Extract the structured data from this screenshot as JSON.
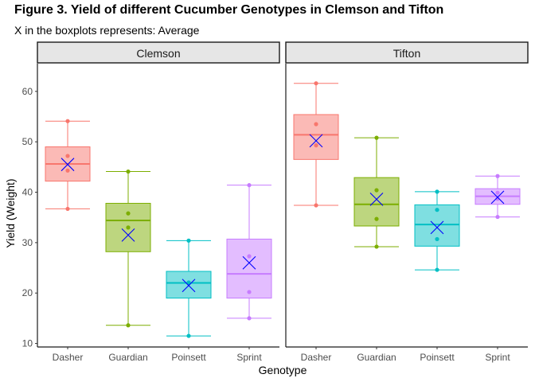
{
  "title": "Figure 3. Yield of different Cucumber Genotypes in Clemson and Tifton",
  "subtitle": "X in the boxplots represents: Average",
  "chart_data": {
    "type": "boxplot",
    "xlabel": "Genotype",
    "ylabel": "Yield (Weight)",
    "ylim": [
      9.3,
      65.5
    ],
    "yticks": [
      10,
      20,
      30,
      40,
      50,
      60
    ],
    "grid": false,
    "legend": "none",
    "categories": [
      "Dasher",
      "Guardian",
      "Poinsett",
      "Sprint"
    ],
    "colors": {
      "Dasher": "#F8766D",
      "Guardian": "#7CAE00",
      "Poinsett": "#00BFC4",
      "Sprint": "#C77CFF"
    },
    "mean_marker_color": "#0000FF",
    "facets": [
      {
        "name": "Clemson",
        "boxes": [
          {
            "category": "Dasher",
            "min": 36.7,
            "q1": 42.2,
            "median": 45.6,
            "q3": 49.0,
            "max": 54.1,
            "mean": 45.5,
            "points": [
              54.1,
              47.2,
              44.3,
              36.7
            ]
          },
          {
            "category": "Guardian",
            "min": 13.6,
            "q1": 28.2,
            "median": 34.4,
            "q3": 37.8,
            "max": 44.1,
            "mean": 31.5,
            "points": [
              44.1,
              35.8,
              33.0,
              13.6
            ]
          },
          {
            "category": "Poinsett",
            "min": 11.5,
            "q1": 19.0,
            "median": 22.0,
            "q3": 24.3,
            "max": 30.4,
            "mean": 21.5,
            "points": [
              30.4,
              22.1,
              21.9,
              11.5
            ]
          },
          {
            "category": "Sprint",
            "min": 15.0,
            "q1": 19.0,
            "median": 23.8,
            "q3": 30.7,
            "max": 41.4,
            "mean": 26.0,
            "points": [
              41.4,
              27.3,
              20.2,
              15.0
            ]
          }
        ]
      },
      {
        "name": "Tifton",
        "boxes": [
          {
            "category": "Dasher",
            "min": 37.4,
            "q1": 46.5,
            "median": 51.4,
            "q3": 55.4,
            "max": 61.6,
            "mean": 50.2,
            "points": [
              61.6,
              53.5,
              49.3,
              37.4
            ]
          },
          {
            "category": "Guardian",
            "min": 29.2,
            "q1": 33.3,
            "median": 37.6,
            "q3": 42.9,
            "max": 50.8,
            "mean": 38.6,
            "points": [
              50.8,
              40.4,
              34.7,
              29.2
            ]
          },
          {
            "category": "Poinsett",
            "min": 24.6,
            "q1": 29.3,
            "median": 33.6,
            "q3": 37.5,
            "max": 40.1,
            "mean": 33.0,
            "points": [
              40.1,
              36.5,
              30.7,
              24.6
            ]
          },
          {
            "category": "Sprint",
            "min": 35.1,
            "q1": 37.6,
            "median": 39.2,
            "q3": 40.7,
            "max": 43.2,
            "mean": 39.0,
            "points": [
              43.2,
              39.9,
              38.7,
              35.1
            ]
          }
        ]
      }
    ]
  }
}
